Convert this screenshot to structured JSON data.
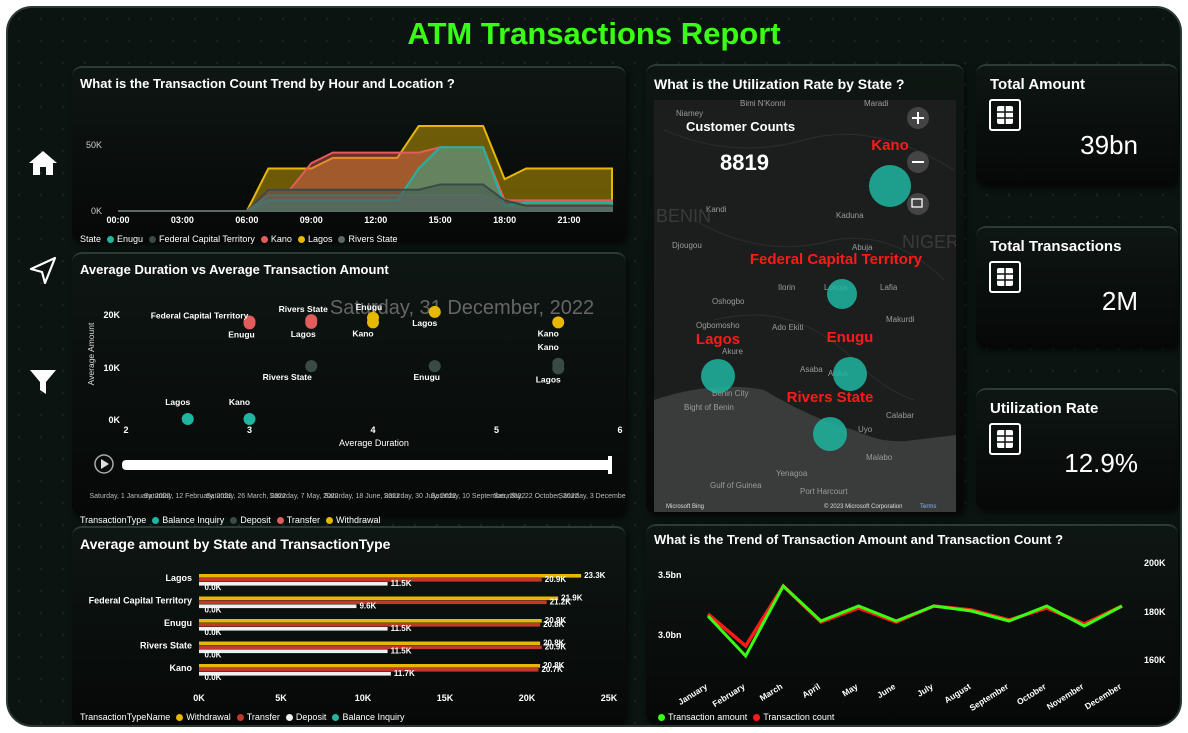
{
  "title": "ATM Transactions Report",
  "nav": {
    "home": "home-icon",
    "navigate": "navigate-icon",
    "filter": "filter-icon"
  },
  "trend_panel": {
    "title": "What is the Transaction Count Trend by Hour and Location ?",
    "y_ticks": [
      "50K",
      "0K"
    ],
    "x_ticks": [
      "00:00",
      "03:00",
      "06:00",
      "09:00",
      "12:00",
      "15:00",
      "18:00",
      "21:00"
    ],
    "legend_title": "State",
    "legend": [
      {
        "name": "Enugu",
        "color": "#1fb5a0"
      },
      {
        "name": "Federal Capital Territory",
        "color": "#3a4a46"
      },
      {
        "name": "Kano",
        "color": "#e25c5c"
      },
      {
        "name": "Lagos",
        "color": "#e6b800"
      },
      {
        "name": "Rivers State",
        "color": "#5a6a66"
      }
    ]
  },
  "scatter_panel": {
    "title": "Average Duration vs Average Transaction Amount",
    "watermark": "Saturday, 31 December, 2022",
    "y_label": "Average Amount",
    "x_label": "Average Duration",
    "y_ticks": [
      "20K",
      "10K",
      "0K"
    ],
    "x_ticks": [
      "2",
      "3",
      "4",
      "5",
      "6"
    ],
    "play_labels": [
      "Saturday, 1 January, 2022",
      "Saturday, 12 February, 2022",
      "Saturday, 26 March, 2022",
      "Saturday, 7 May, 2022",
      "Saturday, 18 June, 2022",
      "Saturday, 30 July, 2022",
      "Saturday, 10 September, 2022",
      "Saturday, 22 October, 2022",
      "Saturday, 3 December,"
    ],
    "legend_title": "TransactionType",
    "legend": [
      {
        "name": "Balance Inquiry",
        "color": "#1fb5a0"
      },
      {
        "name": "Deposit",
        "color": "#3a4a46"
      },
      {
        "name": "Transfer",
        "color": "#e25c5c"
      },
      {
        "name": "Withdrawal",
        "color": "#e6b800"
      }
    ]
  },
  "bar_panel": {
    "title": "Average amount by State and TransactionType",
    "x_ticks": [
      "0K",
      "5K",
      "10K",
      "15K",
      "20K",
      "25K"
    ],
    "legend_title": "TransactionTypeName",
    "legend": [
      {
        "name": "Withdrawal",
        "color": "#e6b800"
      },
      {
        "name": "Transfer",
        "color": "#c0392b"
      },
      {
        "name": "Deposit",
        "color": "#f0f0f0"
      },
      {
        "name": "Balance Inquiry",
        "color": "#1fb5a0"
      }
    ]
  },
  "map_panel": {
    "title": "What is the Utilization Rate by State ?",
    "customer_label": "Customer Counts",
    "customer_value": "8819",
    "states": [
      "Kano",
      "Federal Capital Territory",
      "Lagos",
      "Enugu",
      "Rivers State"
    ],
    "places": [
      "Niamey",
      "Bimi N'Konni",
      "Maradi",
      "Kandi",
      "Djougou",
      "Kaduna",
      "Abuja",
      "Lafia",
      "Ilorin",
      "Oshogbo",
      "Ogbomosho",
      "Ado Ekiti",
      "Akure",
      "Makurdi",
      "Benin City",
      "Awka",
      "Asaba",
      "Yenagoa",
      "Port Harcourt",
      "Uyo",
      "Calabar",
      "Malabo",
      "Bight of Benin",
      "Gulf of Guinea",
      "NIGERIA",
      "BENIN",
      "Lokoja"
    ],
    "footer_left": "Microsoft Bing",
    "footer_right": "© 2023 Microsoft Corporation",
    "footer_terms": "Terms"
  },
  "kpis": [
    {
      "label": "Total Amount",
      "value": "39bn"
    },
    {
      "label": "Total Transactions",
      "value": "2M"
    },
    {
      "label": "Utilization Rate",
      "value": "12.9%"
    }
  ],
  "line_panel": {
    "title": "What is the Trend of Transaction Amount and Transaction Count ?",
    "left_ticks": [
      "3.5bn",
      "3.0bn"
    ],
    "right_ticks": [
      "200K",
      "180K",
      "160K"
    ],
    "legend": [
      {
        "name": "Transaction amount",
        "color": "#39ff14"
      },
      {
        "name": "Transaction count",
        "color": "#ff1a1a"
      }
    ]
  },
  "chart_data": [
    {
      "type": "area",
      "title": "What is the Transaction Count Trend by Hour and Location ?",
      "x": [
        "00:00",
        "01:00",
        "02:00",
        "03:00",
        "04:00",
        "05:00",
        "06:00",
        "07:00",
        "08:00",
        "09:00",
        "10:00",
        "11:00",
        "12:00",
        "13:00",
        "14:00",
        "15:00",
        "16:00",
        "17:00",
        "18:00",
        "19:00",
        "20:00",
        "21:00",
        "22:00",
        "23:00"
      ],
      "ylim": [
        0,
        80000
      ],
      "series": [
        {
          "name": "Lagos",
          "color": "#e6b800",
          "values": [
            0,
            0,
            0,
            0,
            0,
            0,
            0,
            40000,
            40000,
            40000,
            50000,
            50000,
            50000,
            50000,
            80000,
            80000,
            80000,
            80000,
            30000,
            40000,
            40000,
            40000,
            40000,
            40000
          ]
        },
        {
          "name": "Kano",
          "color": "#e25c5c",
          "values": [
            0,
            0,
            0,
            0,
            0,
            0,
            0,
            20000,
            20000,
            45000,
            55000,
            55000,
            55000,
            55000,
            55000,
            60000,
            60000,
            60000,
            10000,
            10000,
            10000,
            10000,
            10000,
            10000
          ]
        },
        {
          "name": "Enugu",
          "color": "#1fb5a0",
          "values": [
            0,
            0,
            0,
            0,
            0,
            0,
            0,
            10000,
            10000,
            10000,
            10000,
            10000,
            10000,
            10000,
            40000,
            60000,
            60000,
            60000,
            5000,
            8000,
            8000,
            8000,
            8000,
            8000
          ]
        },
        {
          "name": "Federal Capital Territory",
          "color": "#3a4a46",
          "values": [
            0,
            0,
            0,
            0,
            0,
            0,
            0,
            20000,
            20000,
            20000,
            20000,
            20000,
            20000,
            20000,
            20000,
            25000,
            25000,
            25000,
            10000,
            5000,
            5000,
            5000,
            5000,
            5000
          ]
        },
        {
          "name": "Rivers State",
          "color": "#5a6a66",
          "values": [
            0,
            0,
            0,
            0,
            0,
            0,
            0,
            15000,
            15000,
            15000,
            15000,
            15000,
            15000,
            15000,
            15000,
            15000,
            15000,
            15000,
            5000,
            3000,
            3000,
            3000,
            3000,
            3000
          ]
        }
      ]
    },
    {
      "type": "scatter",
      "title": "Average Duration vs Average Transaction Amount",
      "xlabel": "Average Duration",
      "ylabel": "Average Amount",
      "xlim": [
        2,
        6
      ],
      "ylim": [
        0,
        25000
      ],
      "points": [
        {
          "label": "Federal Capital Territory",
          "x": 3.0,
          "y": 21200,
          "series": "Transfer"
        },
        {
          "label": "Enugu",
          "x": 3.0,
          "y": 20800,
          "series": "Transfer"
        },
        {
          "label": "Rivers State",
          "x": 3.5,
          "y": 21500,
          "series": "Transfer"
        },
        {
          "label": "Lagos",
          "x": 3.5,
          "y": 20900,
          "series": "Transfer"
        },
        {
          "label": "Enugu",
          "x": 4.0,
          "y": 22000,
          "series": "Withdrawal"
        },
        {
          "label": "Kano",
          "x": 4.0,
          "y": 21000,
          "series": "Withdrawal"
        },
        {
          "label": "Lagos",
          "x": 4.5,
          "y": 23300,
          "series": "Withdrawal"
        },
        {
          "label": "Kano",
          "x": 5.5,
          "y": 21000,
          "series": "Withdrawal"
        },
        {
          "label": "Kano",
          "x": 5.5,
          "y": 12000,
          "series": "Deposit"
        },
        {
          "label": "Lagos",
          "x": 5.5,
          "y": 11000,
          "series": "Deposit"
        },
        {
          "label": "Rivers State",
          "x": 3.5,
          "y": 11500,
          "series": "Deposit"
        },
        {
          "label": "Enugu",
          "x": 4.5,
          "y": 11500,
          "series": "Deposit"
        },
        {
          "label": "Lagos",
          "x": 2.5,
          "y": 0,
          "series": "Balance Inquiry"
        },
        {
          "label": "Kano",
          "x": 3.0,
          "y": 0,
          "series": "Balance Inquiry"
        }
      ]
    },
    {
      "type": "bar",
      "title": "Average amount by State and TransactionType",
      "categories": [
        "Lagos",
        "Federal Capital Territory",
        "Enugu",
        "Rivers State",
        "Kano"
      ],
      "xlim": [
        0,
        25000
      ],
      "series": [
        {
          "name": "Withdrawal",
          "color": "#e6b800",
          "values": [
            23300,
            21900,
            20900,
            20800,
            20800
          ],
          "labels": [
            "23.3K",
            "21.9K",
            "20.9K",
            "20.8K",
            "20.8K"
          ]
        },
        {
          "name": "Transfer",
          "color": "#c0392b",
          "values": [
            20900,
            21200,
            20800,
            20900,
            20700
          ],
          "labels": [
            "20.9K",
            "21.2K",
            "20.8K",
            "20.9K",
            "20.7K"
          ]
        },
        {
          "name": "Deposit",
          "color": "#f0f0f0",
          "values": [
            11500,
            9600,
            11500,
            11500,
            11700
          ],
          "labels": [
            "11.5K",
            "9.6K",
            "11.5K",
            "11.5K",
            "11.7K"
          ]
        },
        {
          "name": "Balance Inquiry",
          "color": "#1fb5a0",
          "values": [
            0,
            0,
            0,
            0,
            0
          ],
          "labels": [
            "0.0K",
            "0.0K",
            "0.0K",
            "0.0K",
            "0.0K"
          ]
        }
      ]
    },
    {
      "type": "line",
      "title": "What is the Trend of Transaction Amount and Transaction Count ?",
      "categories": [
        "January",
        "February",
        "March",
        "April",
        "May",
        "June",
        "July",
        "August",
        "September",
        "October",
        "November",
        "December"
      ],
      "series": [
        {
          "name": "Transaction amount",
          "axis": "left",
          "color": "#39ff14",
          "values": [
            3.3,
            2.9,
            3.6,
            3.25,
            3.4,
            3.25,
            3.4,
            3.35,
            3.25,
            3.4,
            3.2,
            3.4
          ]
        },
        {
          "name": "Transaction count",
          "axis": "right",
          "color": "#ff1a1a",
          "values": [
            181000,
            165000,
            195000,
            177000,
            184000,
            177000,
            185000,
            183000,
            178000,
            184000,
            176000,
            185000
          ]
        }
      ],
      "left_ylim": [
        2.7,
        3.8
      ],
      "right_ylim": [
        150000,
        205000
      ]
    }
  ]
}
